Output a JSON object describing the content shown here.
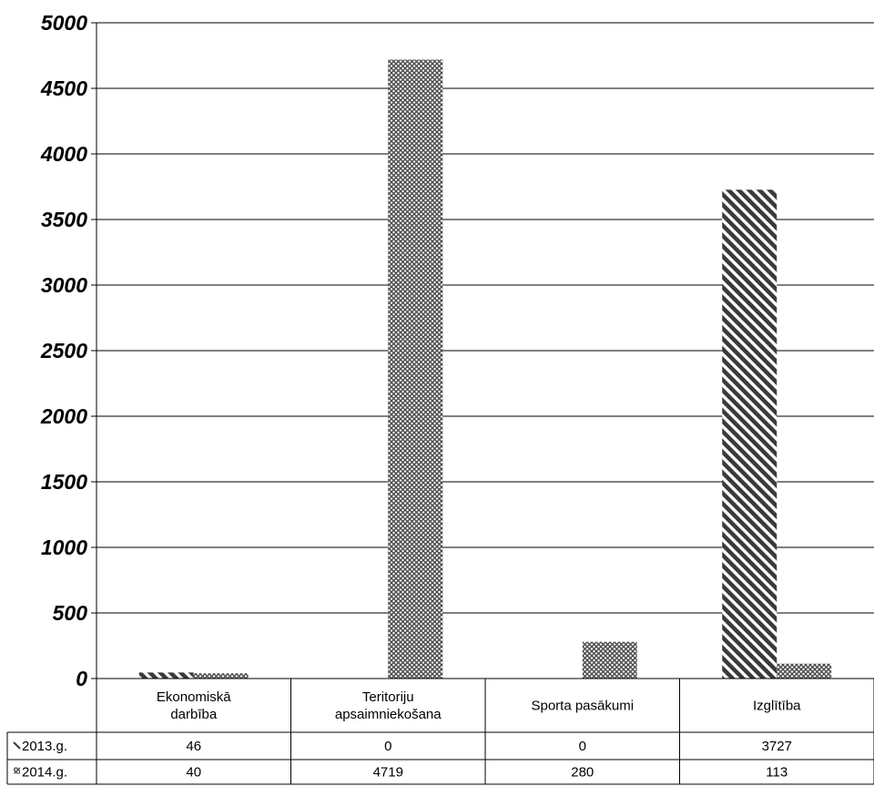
{
  "chart_data": {
    "type": "bar",
    "categories": [
      [
        "Ekonomiskā",
        "darbība"
      ],
      [
        "Teritoriju",
        "apsaimniekošana"
      ],
      [
        "Sporta pasākumi"
      ],
      [
        "Izglītība"
      ]
    ],
    "series": [
      {
        "name": "2013.g.",
        "values": [
          46,
          0,
          0,
          3727
        ],
        "pattern": "diagonal-stripes",
        "color": "#3a3a3a"
      },
      {
        "name": "2014.g.",
        "values": [
          40,
          4719,
          280,
          113
        ],
        "pattern": "crosshatch",
        "color": "#4a4a4a"
      }
    ],
    "ylim": [
      0,
      5000
    ],
    "yticks": [
      0,
      500,
      1000,
      1500,
      2000,
      2500,
      3000,
      3500,
      4000,
      4500,
      5000
    ],
    "grid": true,
    "legend": "data-table",
    "data_table": true
  }
}
